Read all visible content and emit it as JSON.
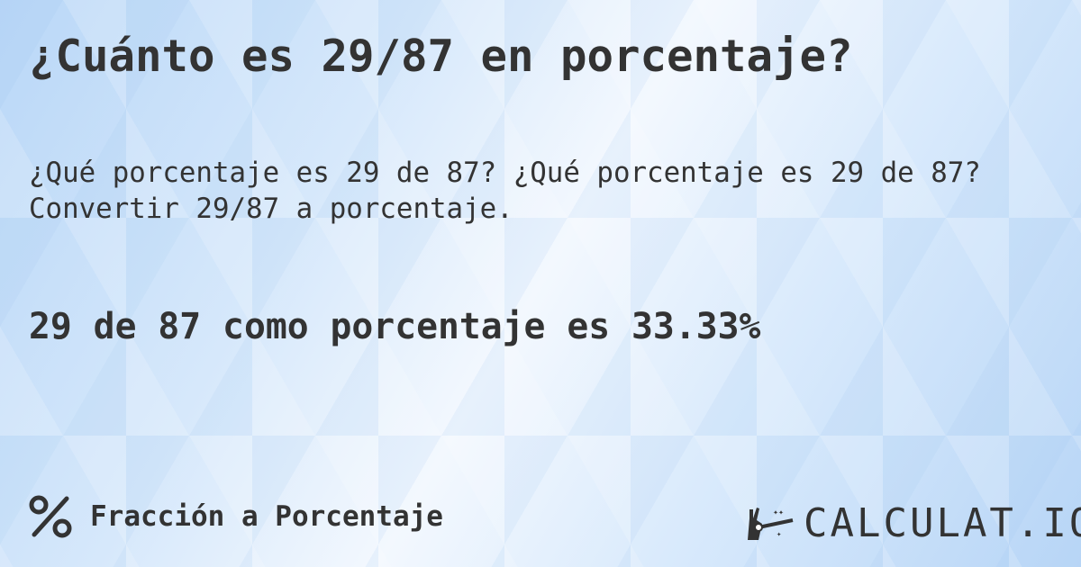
{
  "title": "¿Cuánto es 29/87 en porcentaje?",
  "subtitle": "¿Qué porcentaje es 29 de 87? ¿Qué porcentaje es 29 de 87? Convertir 29/87 a porcentaje.",
  "result": "29 de 87 como porcentaje es 33.33%",
  "footer": {
    "icon": "percent-icon",
    "label": "Fracción a Porcentaje"
  },
  "logo": {
    "text": "CALCULAT.IO",
    "icon": "magic-hand-wand-icon"
  }
}
